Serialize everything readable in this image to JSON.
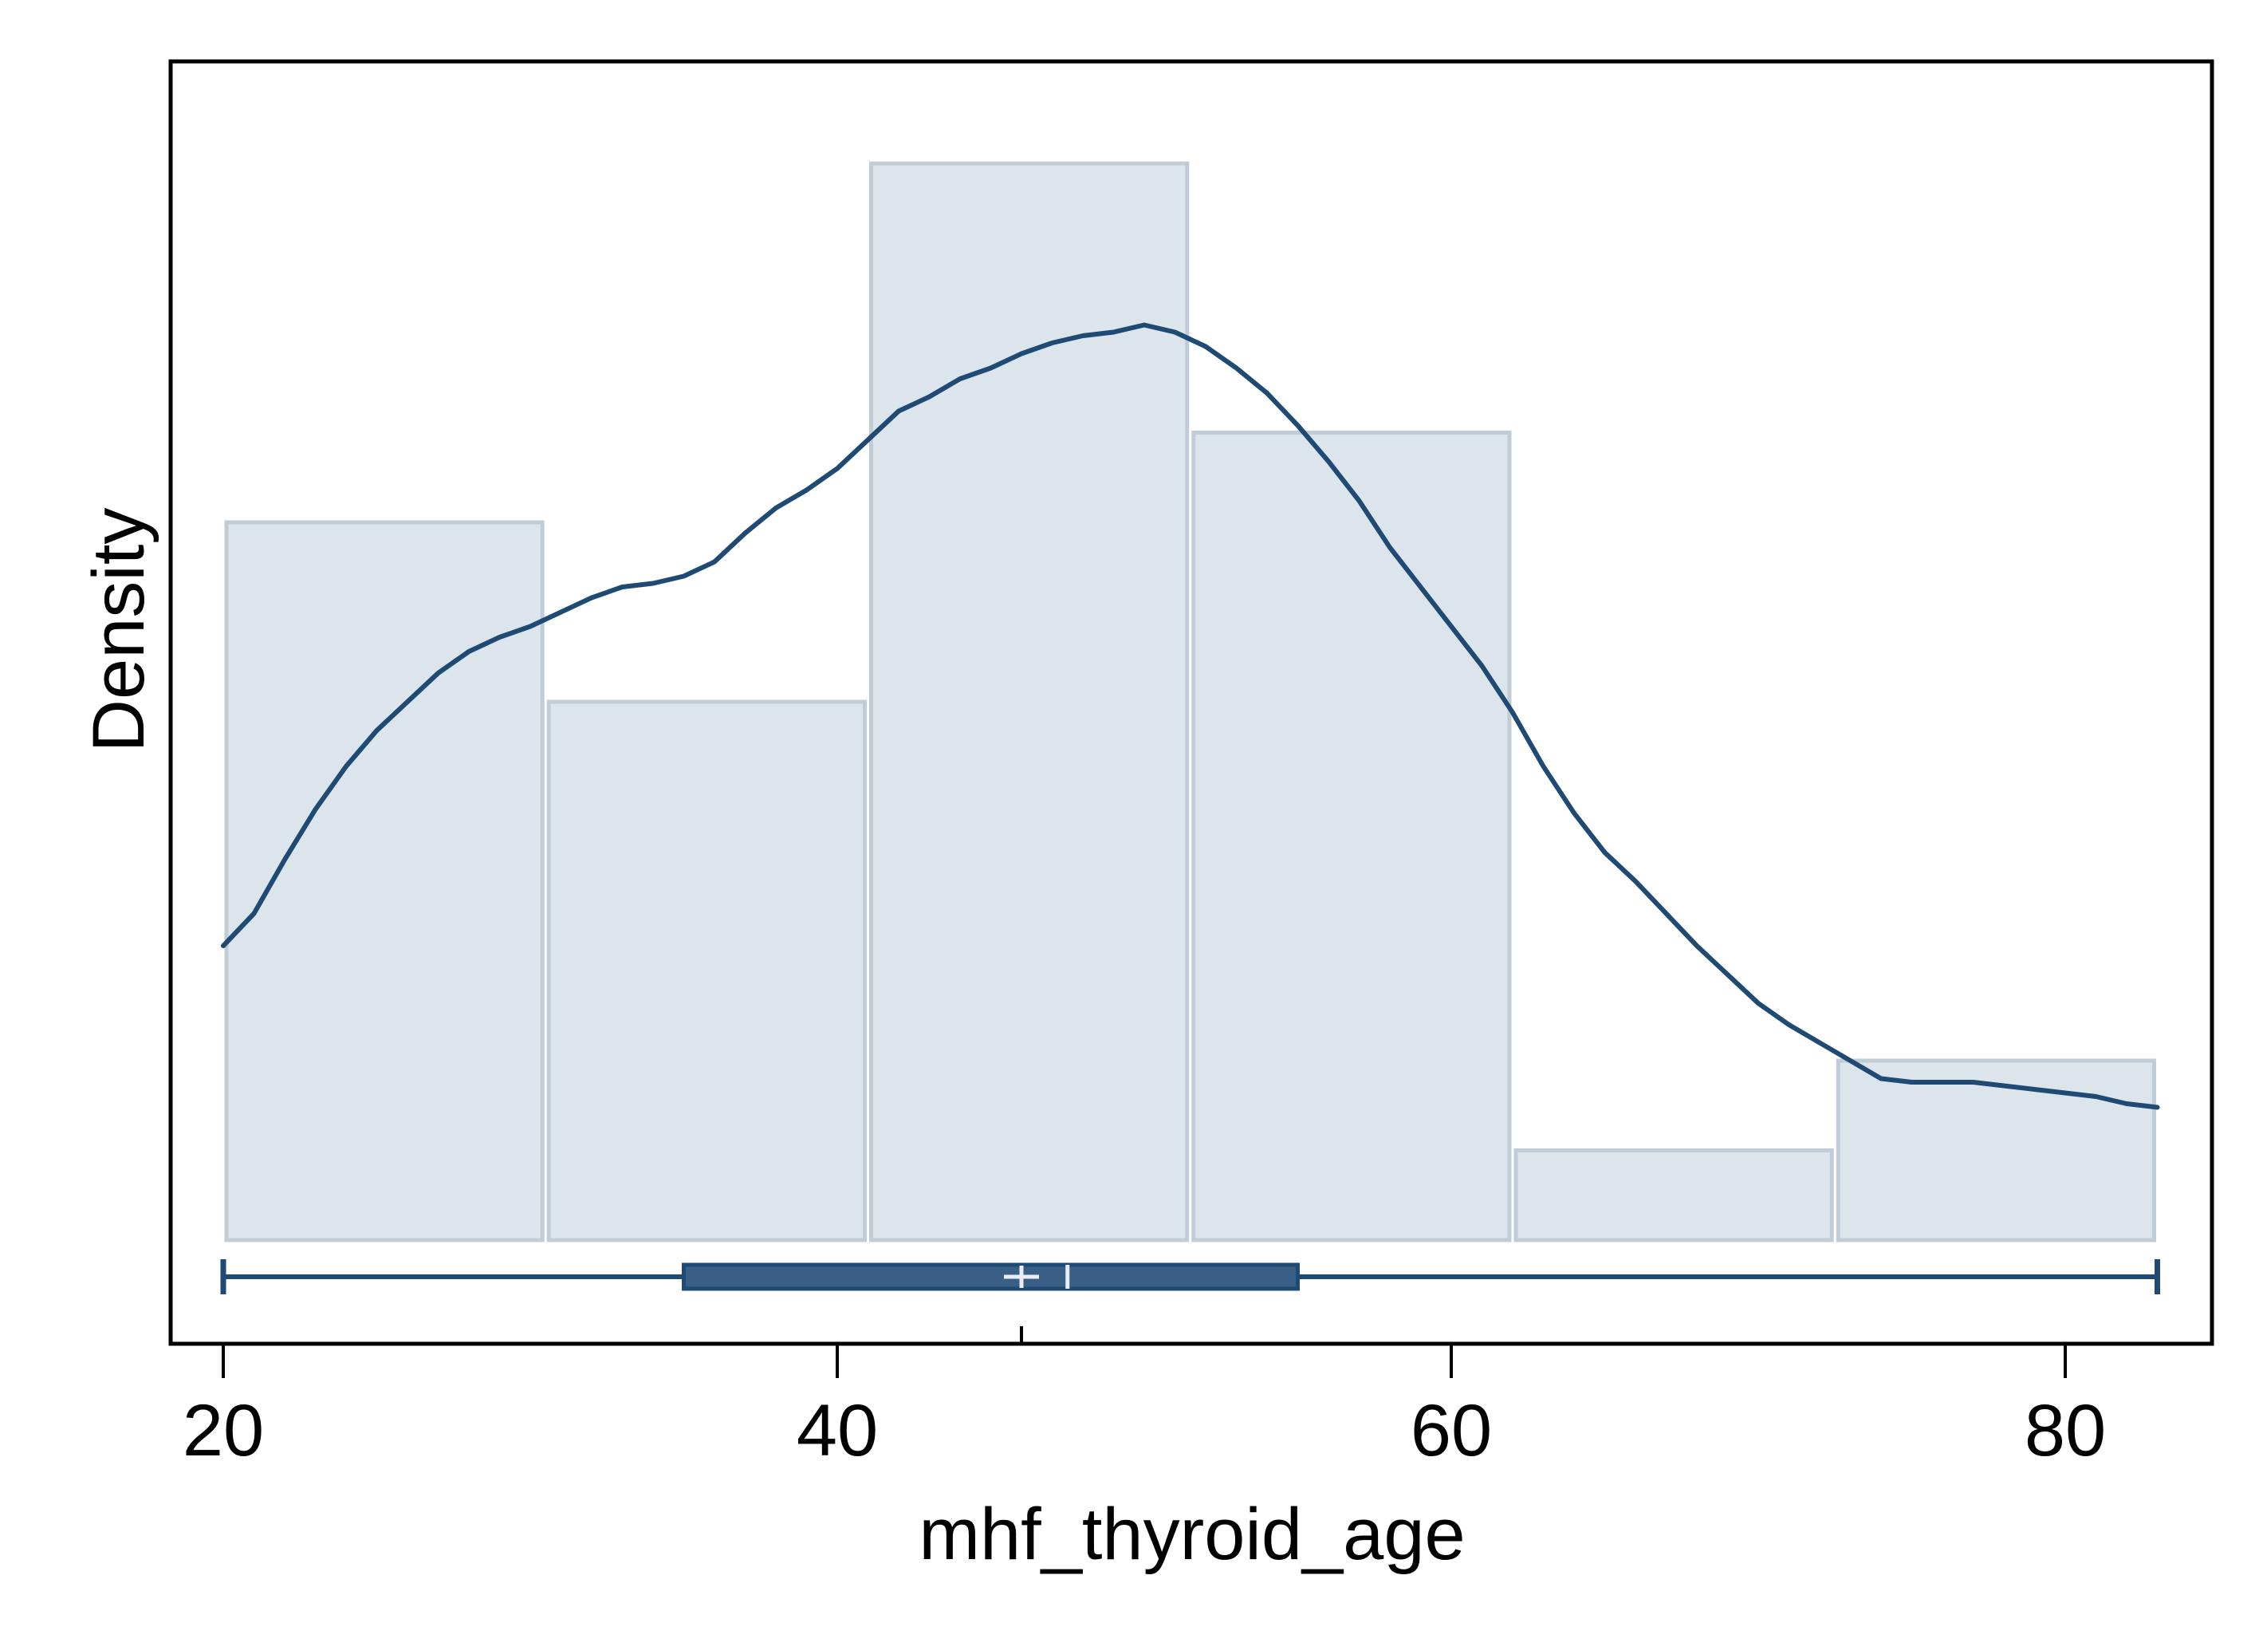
{
  "chart_data": {
    "type": "histogram",
    "title": "",
    "xlabel": "mhf_thyroid_age",
    "ylabel": "Density",
    "xlim": [
      18.5,
      84.8
    ],
    "x_ticks": [
      20,
      40,
      60,
      80
    ],
    "y_ticks": [],
    "grid": false,
    "legend": "none",
    "colors": {
      "bar_fill": "#dce4ec",
      "bar_edge": "#c0ccd6",
      "curve": "#1f4a73",
      "box_fill": "#3a5f87",
      "box_edge": "#1f4a73",
      "frame": "#000000",
      "marker": "#e8eef4"
    },
    "histogram": {
      "bin_edges": [
        20.0,
        30.5,
        41.0,
        51.5,
        62.0,
        72.5,
        83.0
      ],
      "density": [
        0.02,
        0.015,
        0.03,
        0.0225,
        0.0025,
        0.005
      ],
      "ylim": [
        0,
        0.0314
      ]
    },
    "kde": {
      "x": [
        20,
        21,
        22,
        23,
        24,
        25,
        26,
        27,
        28,
        29,
        30,
        31,
        32,
        33,
        34,
        35,
        36,
        37,
        38,
        39,
        40,
        41,
        42,
        43,
        44,
        45,
        46,
        47,
        48,
        49,
        50,
        51,
        52,
        53,
        54,
        55,
        56,
        57,
        58,
        59,
        60,
        61,
        62,
        63,
        64,
        65,
        66,
        67,
        68,
        69,
        70,
        71,
        72,
        73,
        74,
        75,
        76,
        77,
        78,
        79,
        80,
        81,
        82,
        83
      ],
      "y": [
        0.0082,
        0.0091,
        0.0106,
        0.012,
        0.0132,
        0.0142,
        0.015,
        0.0158,
        0.0164,
        0.0168,
        0.0171,
        0.0175,
        0.0179,
        0.0182,
        0.0183,
        0.0185,
        0.0189,
        0.0197,
        0.0204,
        0.0209,
        0.0215,
        0.0223,
        0.0231,
        0.0235,
        0.024,
        0.0243,
        0.0247,
        0.025,
        0.0252,
        0.0253,
        0.0255,
        0.0253,
        0.0249,
        0.0243,
        0.0236,
        0.0227,
        0.0217,
        0.0206,
        0.0193,
        0.0182,
        0.0171,
        0.016,
        0.0147,
        0.0132,
        0.0119,
        0.0108,
        0.01,
        0.0091,
        0.0082,
        0.0074,
        0.0066,
        0.006,
        0.0055,
        0.005,
        0.0045,
        0.0044,
        0.0044,
        0.0044,
        0.0043,
        0.0042,
        0.0041,
        0.004,
        0.0038,
        0.0037
      ]
    },
    "boxplot": {
      "min": 20,
      "q1": 35,
      "median": 47.5,
      "q3": 55,
      "max": 83,
      "mean": 46
    }
  }
}
